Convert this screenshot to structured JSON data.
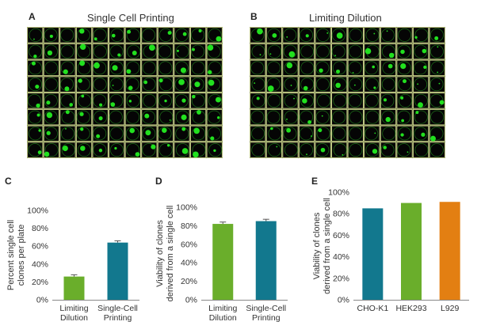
{
  "panels": {
    "A": {
      "label": "A",
      "title": "Single Cell Printing"
    },
    "B": {
      "label": "B",
      "title": "Limiting Dilution"
    },
    "C": {
      "label": "C"
    },
    "D": {
      "label": "D"
    },
    "E": {
      "label": "E"
    }
  },
  "colors": {
    "green": "#6aae2b",
    "teal": "#12788e",
    "orange": "#e37f12",
    "well_border": "#c9d38a",
    "cell": "#22e01f"
  },
  "chart_data": [
    {
      "panel": "C",
      "type": "bar",
      "categories": [
        "Limiting\nDilution",
        "Single-Cell\nPrinting"
      ],
      "values": [
        26,
        64
      ],
      "errors": [
        2,
        2
      ],
      "ylabel": "Percent single cell\nclones per plate",
      "ylim": [
        0,
        100
      ],
      "yticks": [
        "0%",
        "20%",
        "40%",
        "60%",
        "80%",
        "100%"
      ],
      "colors": [
        "#6aae2b",
        "#12788e"
      ]
    },
    {
      "panel": "D",
      "type": "bar",
      "categories": [
        "Limiting\nDilution",
        "Single-Cell\nPrinting"
      ],
      "values": [
        82,
        85
      ],
      "errors": [
        2,
        2
      ],
      "ylabel": "Viability of clones\nderived from a single cell",
      "ylim": [
        0,
        100
      ],
      "yticks": [
        "0%",
        "20%",
        "40%",
        "60%",
        "80%",
        "100%"
      ],
      "colors": [
        "#6aae2b",
        "#12788e"
      ]
    },
    {
      "panel": "E",
      "type": "bar",
      "categories": [
        "CHO-K1",
        "HEK293",
        "L929"
      ],
      "values": [
        85,
        90,
        91
      ],
      "errors": [],
      "ylabel": "Viability of clones\nderived from a single cell",
      "ylim": [
        0,
        100
      ],
      "yticks": [
        "0%",
        "20%",
        "40%",
        "60%",
        "80%",
        "100%"
      ],
      "colors": [
        "#12788e",
        "#6aae2b",
        "#e37f12"
      ]
    }
  ]
}
